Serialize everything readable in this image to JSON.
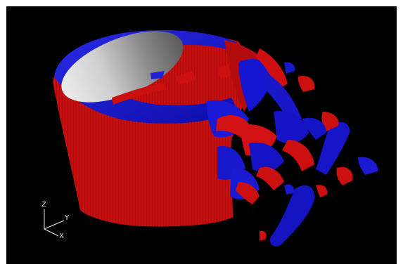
{
  "viewer": {
    "background_color": "#000000",
    "frame_color": "#ffffff",
    "colors": {
      "positive_isosurface": "#d81010",
      "negative_isosurface": "#1515d0",
      "cylinder_interior": "#b8b8b8"
    }
  },
  "axes": {
    "z_label": "Z",
    "y_label": "Y",
    "x_label": "X"
  }
}
